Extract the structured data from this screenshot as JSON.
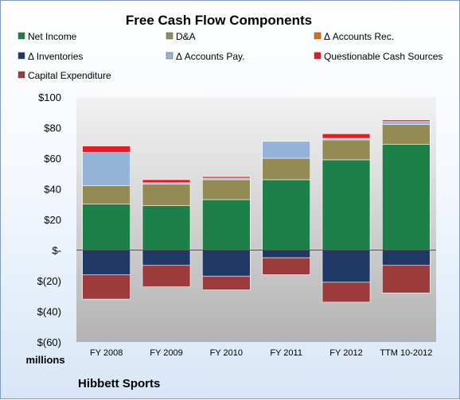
{
  "chart_data": {
    "type": "bar",
    "stacked": true,
    "title": "Free Cash Flow Components",
    "categories": [
      "FY 2008",
      "FY 2009",
      "FY 2010",
      "FY 2011",
      "FY 2012",
      "TTM 10-2012"
    ],
    "ylim": [
      -60,
      100
    ],
    "yticks": [
      100,
      80,
      60,
      40,
      20,
      0,
      -20,
      -40,
      -60
    ],
    "ytick_labels": [
      "$100",
      "$80",
      "$60",
      "$40",
      "$20",
      "$-",
      "$(20)",
      "$(40)",
      "$(60)"
    ],
    "grid": false,
    "legend_position": "top",
    "unit_label": "millions",
    "footer": "Hibbett Sports",
    "series": [
      {
        "name": "Net Income",
        "color": "#1e8049",
        "values": [
          30,
          29,
          33,
          46,
          59,
          69
        ]
      },
      {
        "name": "D&A",
        "color": "#948a54",
        "values": [
          12,
          14,
          13,
          14,
          13,
          13
        ]
      },
      {
        "name": "Δ Accounts Rec.",
        "color": "#e46c0a",
        "values": [
          0,
          0,
          0,
          0,
          0,
          0
        ]
      },
      {
        "name": "Δ Inventories",
        "color": "#1f3864",
        "values": [
          -16,
          -10,
          -17,
          -5,
          -21,
          -10
        ]
      },
      {
        "name": "Δ Accounts Pay.",
        "color": "#95b3d7",
        "values": [
          22,
          1,
          1,
          11,
          1,
          2
        ]
      },
      {
        "name": "Questionable Cash Sources",
        "color": "#e31b23",
        "values": [
          4,
          2,
          1,
          0,
          3,
          1
        ]
      },
      {
        "name": "Capital Expenditure",
        "color": "#9b3b3b",
        "values": [
          -16,
          -14,
          -9,
          -11,
          -13,
          -18
        ]
      }
    ]
  }
}
